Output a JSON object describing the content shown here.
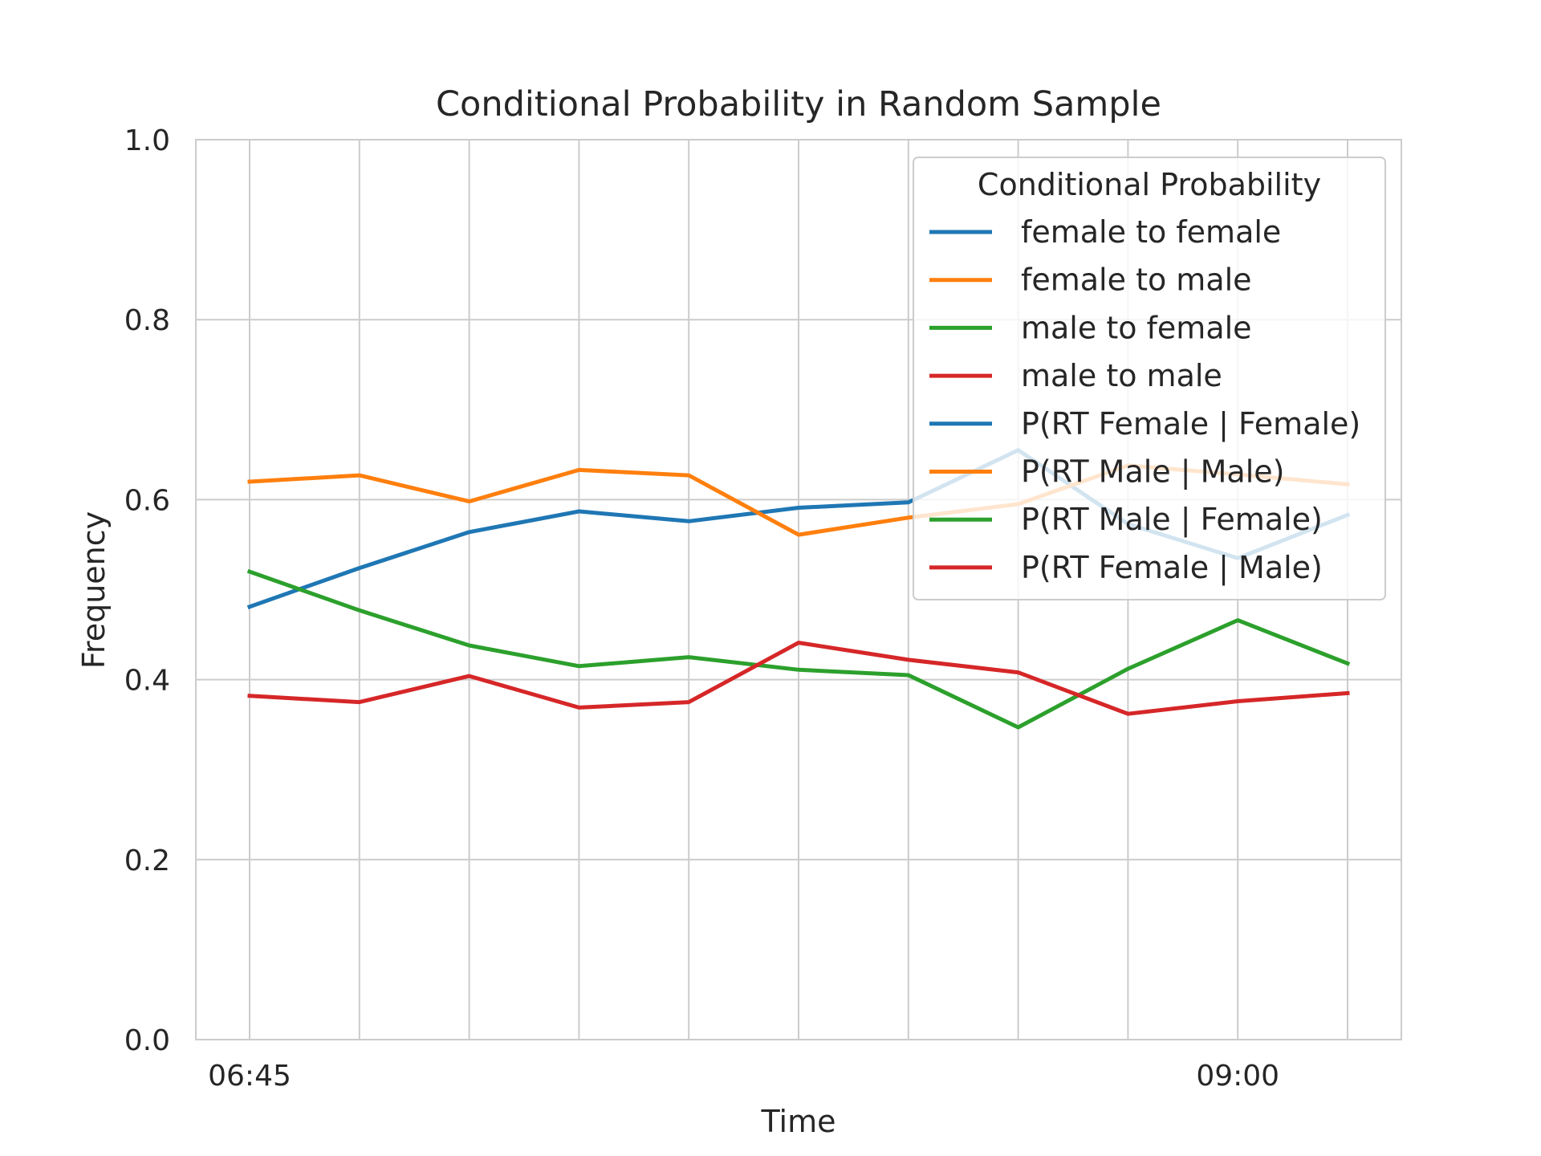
{
  "chart_data": {
    "type": "line",
    "title": "Conditional Probability in Random Sample",
    "xlabel": "Time",
    "ylabel": "Frequency",
    "x": [
      "06:45",
      "07:00",
      "07:15",
      "07:30",
      "07:45",
      "08:00",
      "08:15",
      "08:30",
      "08:45",
      "09:00",
      "09:15"
    ],
    "x_tick_labels": [
      {
        "at": "06:45",
        "label": "06:45"
      },
      {
        "at": "09:00",
        "label": "09:00"
      }
    ],
    "ylim": [
      0,
      1
    ],
    "y_ticks": [
      "0.0",
      "0.2",
      "0.4",
      "0.6",
      "0.8",
      "1.0"
    ],
    "grid": true,
    "legend": {
      "title": "Conditional Probability",
      "placement": "top-right"
    },
    "series": [
      {
        "name": "female to female",
        "color": "#1f77b4",
        "values": [
          0.481,
          0.524,
          0.564,
          0.587,
          0.576,
          0.591,
          0.597,
          0.655,
          0.573,
          0.535,
          0.583
        ]
      },
      {
        "name": "female to male",
        "color": "#ff7f0e",
        "values": [
          0.62,
          0.627,
          0.598,
          0.633,
          0.627,
          0.561,
          0.58,
          0.595,
          0.638,
          0.628,
          0.617
        ]
      },
      {
        "name": "male to female",
        "color": "#2ca02c",
        "values": [
          0.52,
          0.477,
          0.438,
          0.415,
          0.425,
          0.411,
          0.405,
          0.347,
          0.412,
          0.466,
          0.418
        ]
      },
      {
        "name": "male to male",
        "color": "#d62728",
        "values": [
          0.382,
          0.375,
          0.404,
          0.369,
          0.375,
          0.441,
          0.422,
          0.408,
          0.362,
          0.376,
          0.385
        ]
      }
    ],
    "extra_legend_entries": [
      {
        "name": "P(RT Female | Female)",
        "color": "#1f77b4"
      },
      {
        "name": "P(RT Male | Male)",
        "color": "#ff7f0e"
      },
      {
        "name": "P(RT Male | Female)",
        "color": "#2ca02c"
      },
      {
        "name": "P(RT Female | Male)",
        "color": "#d62728"
      }
    ]
  }
}
